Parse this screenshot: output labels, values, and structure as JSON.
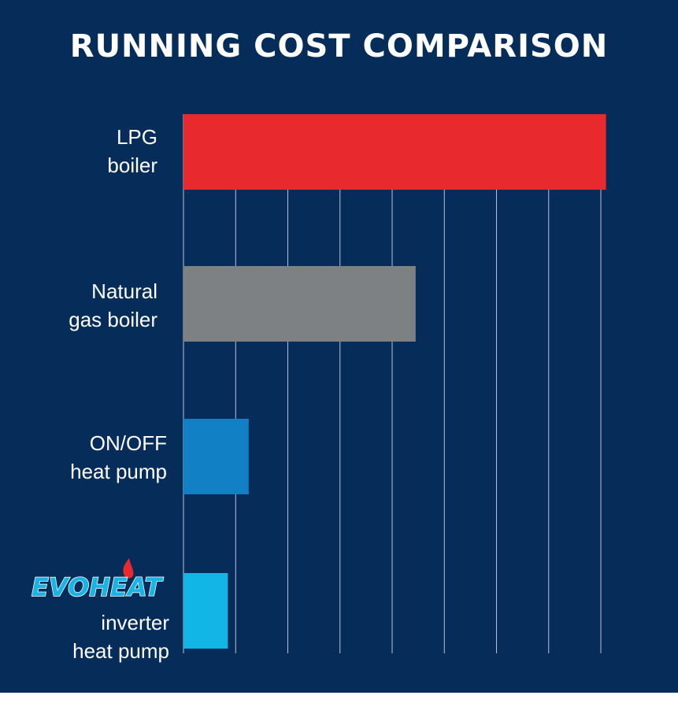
{
  "chart_data": {
    "type": "bar",
    "orientation": "horizontal",
    "title": "RUNNING COST COMPARISON",
    "categories": [
      "LPG\nboiler",
      "Natural\ngas boiler",
      "ON/OFF\nheat pump",
      "inverter\nheat pump"
    ],
    "values": [
      8.1,
      4.45,
      1.25,
      0.85
    ],
    "bar_colors": [
      "#e8292e",
      "#7d8184",
      "#1180c4",
      "#11b6e6"
    ],
    "xlim": [
      0,
      8
    ],
    "xlabel": "",
    "ylabel": "",
    "grid": true,
    "axis_tick_labels": false,
    "legend": "none"
  },
  "logo": {
    "text": "EVOHEAT",
    "text_color": "#1ab3e6",
    "flame_color": "#e8292e"
  },
  "colors": {
    "background": "#062c5a",
    "gridline": "#b7c3d3",
    "text": "#ffffff",
    "footer": "#ffffff"
  }
}
